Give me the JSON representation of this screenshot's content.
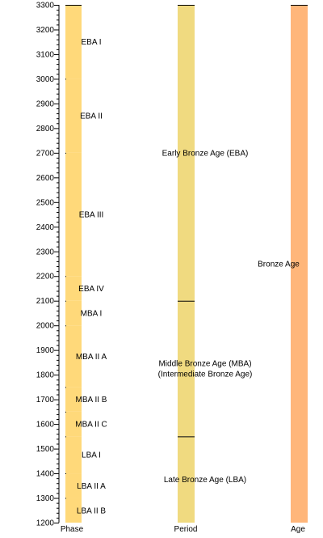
{
  "chart_data": {
    "type": "timeline",
    "title": "",
    "ylim": [
      1200,
      3300
    ],
    "y_ticks": [
      1200,
      1300,
      1400,
      1500,
      1600,
      1700,
      1800,
      1900,
      2000,
      2100,
      2200,
      2300,
      2400,
      2500,
      2600,
      2700,
      2800,
      2900,
      3000,
      3100,
      3200,
      3300
    ],
    "columns": [
      {
        "label": "Phase",
        "color": "#FFD97A",
        "segments": [
          {
            "label": "EBA I",
            "start": 3300,
            "end": 3000
          },
          {
            "label": "EBA II",
            "start": 3000,
            "end": 2700
          },
          {
            "label": "EBA III",
            "start": 2700,
            "end": 2200
          },
          {
            "label": "EBA IV",
            "start": 2200,
            "end": 2100
          },
          {
            "label": "MBA I",
            "start": 2100,
            "end": 2000
          },
          {
            "label": "MBA II A",
            "start": 2000,
            "end": 1750
          },
          {
            "label": "MBA II B",
            "start": 1750,
            "end": 1650
          },
          {
            "label": "MBA II C",
            "start": 1650,
            "end": 1550
          },
          {
            "label": "LBA I",
            "start": 1550,
            "end": 1400
          },
          {
            "label": "LBA II A",
            "start": 1400,
            "end": 1300
          },
          {
            "label": "LBA II B",
            "start": 1300,
            "end": 1200
          }
        ]
      },
      {
        "label": "Period",
        "color": "#F0DA80",
        "segments": [
          {
            "label": "Early Bronze Age (EBA)",
            "start": 3300,
            "end": 2100
          },
          {
            "label": "Middle Bronze Age (MBA)\n(Intermediate Bronze Age)",
            "start": 2100,
            "end": 1550
          },
          {
            "label": "Late Bronze Age (LBA)",
            "start": 1550,
            "end": 1200
          }
        ]
      },
      {
        "label": "Age",
        "color": "#FFB67A",
        "segments": [
          {
            "label": "Bronze Age",
            "start": 3300,
            "end": 1200
          }
        ]
      }
    ]
  }
}
